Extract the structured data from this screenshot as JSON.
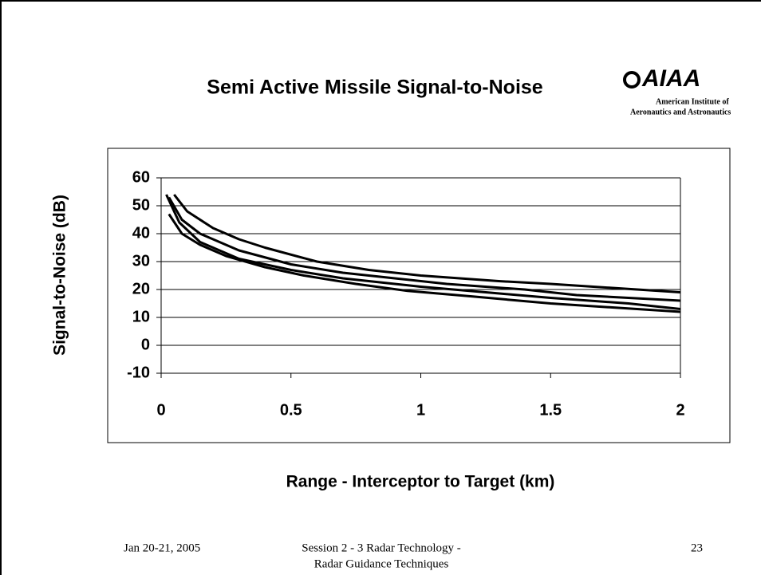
{
  "chart_data": {
    "type": "line",
    "title": "Semi Active Missile Signal-to-Noise",
    "xlabel": "Range - Interceptor to Target (km)",
    "ylabel": "Signal-to-Noise (dB)",
    "xlim": [
      0,
      2
    ],
    "xticks": [
      0,
      0.5,
      1,
      1.5,
      2
    ],
    "ylim": [
      -10,
      60
    ],
    "yticks": [
      -10,
      0,
      10,
      20,
      30,
      40,
      50,
      60
    ],
    "grid": true,
    "series": [
      {
        "color": "#000000",
        "x": [
          0.05,
          0.1,
          0.2,
          0.3,
          0.4,
          0.6,
          0.8,
          1,
          1.3,
          1.5,
          1.75,
          2
        ],
        "values": [
          54,
          48,
          42,
          38,
          35,
          30,
          27,
          25,
          23,
          22,
          20.5,
          19
        ]
      },
      {
        "color": "#000000",
        "x": [
          0.03,
          0.08,
          0.15,
          0.3,
          0.5,
          0.7,
          0.9,
          1.1,
          1.4,
          1.6,
          1.8,
          2
        ],
        "values": [
          53,
          45,
          40,
          34,
          29,
          26,
          24,
          22,
          20,
          18,
          17,
          16
        ]
      },
      {
        "color": "#000000",
        "x": [
          0.02,
          0.07,
          0.15,
          0.3,
          0.5,
          0.7,
          0.9,
          1,
          1.25,
          1.5,
          1.8,
          2
        ],
        "values": [
          54,
          44,
          37,
          31,
          27,
          24,
          22,
          21,
          19,
          17,
          15,
          13
        ]
      },
      {
        "color": "#000000",
        "x": [
          0.03,
          0.08,
          0.15,
          0.25,
          0.4,
          0.55,
          0.75,
          0.95,
          1.2,
          1.5,
          1.75,
          2
        ],
        "values": [
          47,
          40,
          36,
          32,
          28,
          25,
          22,
          19.5,
          17.5,
          15,
          13.5,
          12
        ]
      }
    ]
  },
  "logo": {
    "mark": "AIAA",
    "line1": "American Institute of",
    "line2": "Aeronautics and Astronautics"
  },
  "footer": {
    "date": "Jan 20-21, 2005",
    "session1": "Session 2 - 3  Radar Technology -",
    "session2": "Radar Guidance Techniques",
    "page": "23"
  }
}
